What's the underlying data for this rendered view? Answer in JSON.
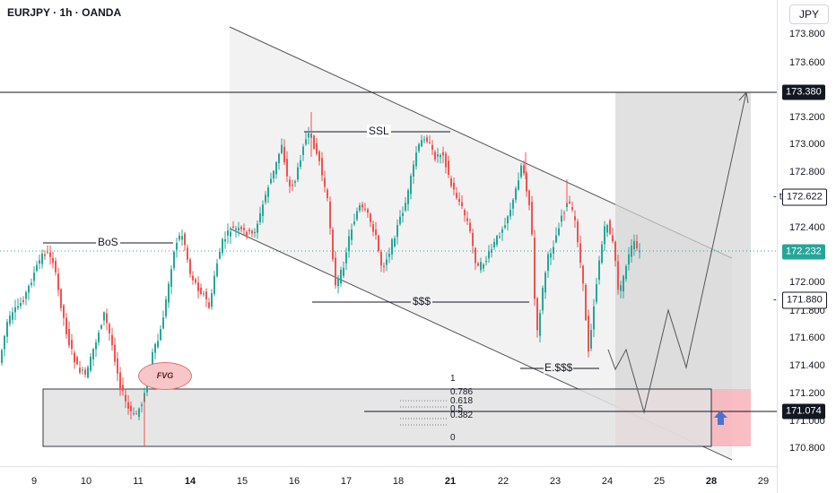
{
  "header": {
    "symbol_title": "EURJPY · 1h · OANDA",
    "currency": "JPY"
  },
  "price_scale": {
    "ticks": [
      "173.800",
      "173.600",
      "173.200",
      "173.000",
      "172.800",
      "172.400",
      "172.000",
      "171.800",
      "171.600",
      "171.400",
      "171.200",
      "171.000",
      "170.800"
    ]
  },
  "price_tags": [
    {
      "value": "173.380",
      "bg": "#131722",
      "fg": "#ffffff"
    },
    {
      "value": "172.622",
      "bg": "#ffffff",
      "fg": "#131722",
      "prefix": "- t"
    },
    {
      "value": "172.232",
      "bg": "#26a69a",
      "fg": "#ffffff"
    },
    {
      "value": "171.880",
      "bg": "#ffffff",
      "fg": "#131722",
      "prefix": "- "
    },
    {
      "value": "171.074",
      "bg": "#131722",
      "fg": "#ffffff"
    }
  ],
  "time_scale": {
    "labels": [
      "9",
      "10",
      "11",
      "14",
      "15",
      "16",
      "17",
      "18",
      "21",
      "22",
      "23",
      "24",
      "25",
      "28",
      "29"
    ]
  },
  "annotations": {
    "bos": "BoS",
    "ssl": "SSL",
    "liquidity": "$$$",
    "equal_liquidity": "E.$$$",
    "fvg": "FVG"
  },
  "fib_levels": [
    "1",
    "0.786",
    "0.618",
    "0.5",
    "0.382",
    "0"
  ],
  "colors": {
    "up": "#26a69a",
    "down": "#ef5350",
    "channel_fill": "#f0f0f0",
    "zone_fill": "#e3e3e3",
    "target_fill": "#d6d6d6",
    "stop_fill": "#f5b8bd",
    "arrow": "#4a72d0"
  }
}
